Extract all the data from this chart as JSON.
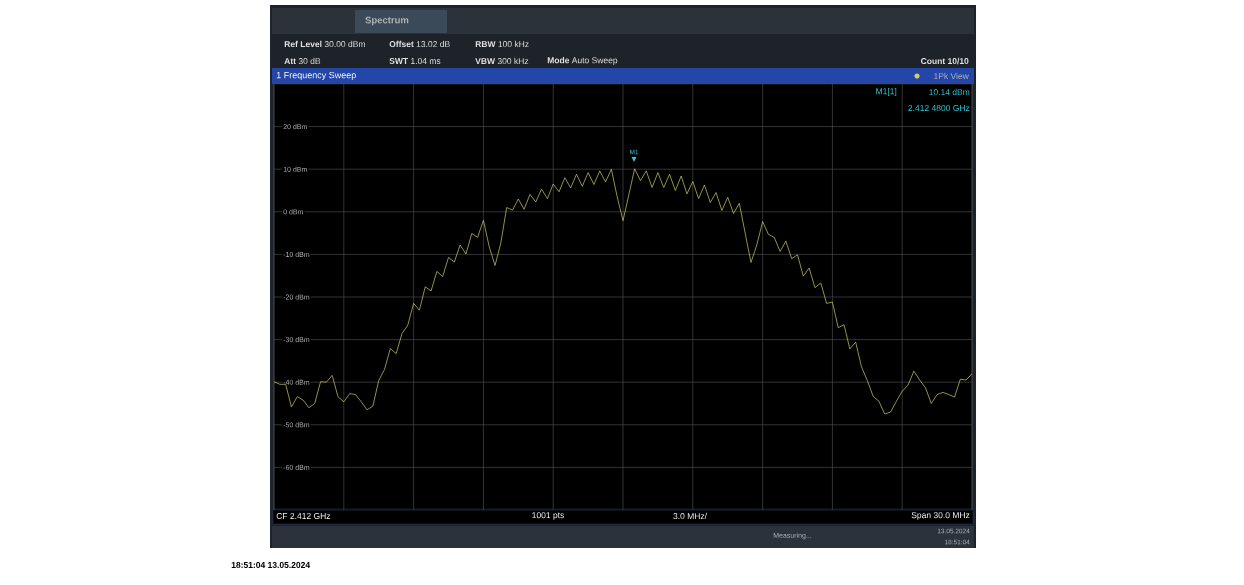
{
  "chart_data": {
    "type": "line",
    "title": "1 Frequency Sweep",
    "subtitle": "Spectrum",
    "categories": [
      null,
      null,
      null,
      null,
      null,
      null,
      null,
      null,
      null,
      null,
      null,
      null,
      null,
      null,
      null,
      null,
      null,
      null,
      null,
      null,
      null,
      null,
      null,
      null,
      null,
      null,
      null,
      null,
      null,
      null,
      null,
      null,
      null,
      null,
      null,
      null,
      null,
      null,
      null,
      null,
      null,
      null,
      null,
      null,
      null,
      null,
      null,
      null,
      null,
      null,
      null,
      null,
      null,
      null,
      null,
      null,
      null,
      null,
      null,
      null,
      null,
      null,
      null,
      null,
      null,
      null,
      null,
      null,
      null,
      null,
      null,
      null,
      null,
      null,
      null,
      null,
      null,
      null,
      null,
      null,
      null,
      null,
      null,
      null,
      null,
      null,
      null,
      null,
      null,
      null,
      null,
      null,
      null,
      null,
      null,
      null,
      null,
      null,
      null,
      null,
      null,
      null,
      null,
      null,
      null,
      null,
      null,
      null,
      null,
      null,
      null,
      null,
      null,
      null,
      null,
      null,
      null,
      null,
      null,
      null,
      null
    ],
    "ylim": [
      -70,
      30
    ],
    "yticks": [
      {
        "value": 20,
        "label": "20 dBm"
      },
      {
        "value": 10,
        "label": "10 dBm"
      },
      {
        "value": 0,
        "label": "0 dBm"
      },
      {
        "value": -10,
        "label": "-10 dBm"
      },
      {
        "value": -20,
        "label": "-20 dBm"
      },
      {
        "value": -30,
        "label": "-30 dBm"
      },
      {
        "value": -40,
        "label": "-40 dBm"
      },
      {
        "value": -50,
        "label": "-50 dBm"
      },
      {
        "value": -60,
        "label": "-60 dBm"
      }
    ],
    "grid": true,
    "series": [
      {
        "color": "#cfcf6a",
        "values": [
          -39.9,
          -40.5,
          -40.5,
          -45.8,
          -43.4,
          -44.2,
          -46.0,
          -45.0,
          -39.9,
          -40.0,
          -38.4,
          -43.4,
          -44.6,
          -42.7,
          -42.9,
          -44.6,
          -46.5,
          -45.6,
          -39.6,
          -37.0,
          -32.1,
          -33.3,
          -28.6,
          -26.6,
          -21.5,
          -23.1,
          -17.6,
          -18.6,
          -14.0,
          -15.2,
          -10.7,
          -11.8,
          -7.8,
          -9.9,
          -5.1,
          -6.0,
          -2.0,
          -8.2,
          -12.6,
          -7.3,
          1.0,
          0.4,
          3.0,
          0.6,
          4.1,
          2.3,
          5.3,
          3.1,
          6.5,
          4.7,
          8.0,
          5.6,
          8.8,
          6.0,
          9.2,
          6.4,
          9.6,
          7.0,
          10.0,
          3.5,
          -2.1,
          4.0,
          10.1,
          7.3,
          9.6,
          5.7,
          9.2,
          5.7,
          8.8,
          5.0,
          8.4,
          4.2,
          7.1,
          3.1,
          6.3,
          2.2,
          4.5,
          0.3,
          3.4,
          -0.4,
          2.0,
          -5.0,
          -11.9,
          -7.8,
          -2.3,
          -5.3,
          -6.0,
          -9.3,
          -6.9,
          -11.0,
          -10.1,
          -15.1,
          -13.2,
          -17.8,
          -16.7,
          -21.5,
          -21.2,
          -27.2,
          -26.5,
          -32.2,
          -30.6,
          -36.4,
          -39.6,
          -43.3,
          -44.5,
          -47.5,
          -47.0,
          -44.5,
          -42.1,
          -40.7,
          -37.4,
          -39.5,
          -41.3,
          -45.0,
          -42.9,
          -42.4,
          -42.9,
          -43.5,
          -39.3,
          -39.5,
          -38.0
        ]
      }
    ],
    "annotations": [
      "**Ref Level** 30.00 dBm",
      "**Offset** 13.02 dB",
      "**RBW** 100 kHz",
      "**Att** 30 dB",
      "**SWT** 1.04 ms",
      "**VBW** 300 kHz",
      "**Mode** Auto Sweep",
      "Count 10/10",
      "1Pk View",
      "M1[1]",
      "10.14 dBm",
      "2.412 4800 GHz",
      "M1",
      "CF 2.412 GHz",
      "1001 pts",
      "3.0 MHz/",
      "Span 30.0 MHz",
      "Measuring...",
      "13.05.2024",
      "18:51:04",
      "18:51:04  13.05.2024"
    ]
  }
}
